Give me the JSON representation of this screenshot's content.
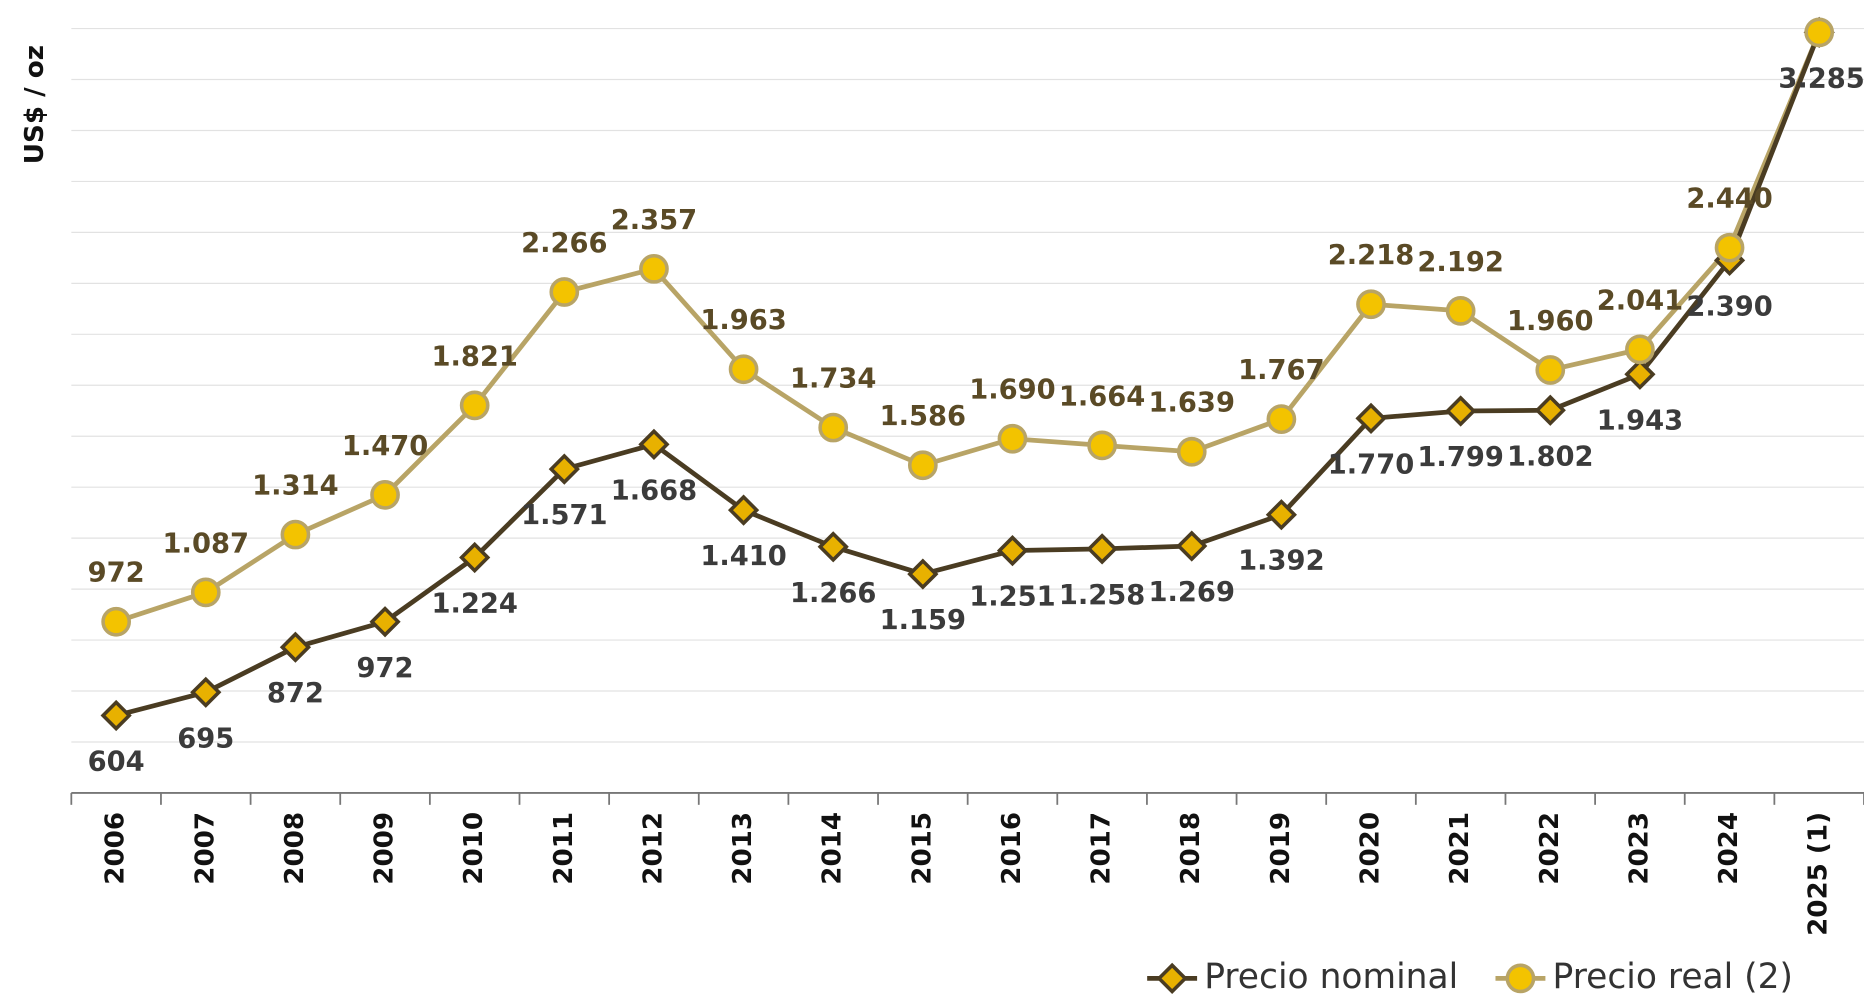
{
  "chart_data": {
    "type": "line",
    "y_label": "US$ / oz",
    "categories": [
      "2006",
      "2007",
      "2008",
      "2009",
      "2010",
      "2011",
      "2012",
      "2013",
      "2014",
      "2015",
      "2016",
      "2017",
      "2018",
      "2019",
      "2020",
      "2021",
      "2022",
      "2023",
      "2024",
      "2025 (1)"
    ],
    "series": [
      {
        "name": "Precio nominal",
        "color": "#4a3c22",
        "marker": "diamond",
        "marker_color": "#e8b100",
        "values": [
          604,
          695,
          872,
          972,
          1224,
          1571,
          1668,
          1410,
          1266,
          1159,
          1251,
          1258,
          1269,
          1392,
          1770,
          1799,
          1802,
          1943,
          2390,
          3285
        ],
        "value_labels": [
          "604",
          "695",
          "872",
          "972",
          "1.224",
          "1.571",
          "1.668",
          "1.410",
          "1.266",
          "1.159",
          "1.251",
          "1.258",
          "1.269",
          "1.392",
          "1.770",
          "1.799",
          "1.802",
          "1.943",
          "2.390",
          "3.285"
        ]
      },
      {
        "name": "Precio real (2)",
        "color": "#b8a466",
        "marker": "circle",
        "marker_color": "#f3c300",
        "values": [
          972,
          1087,
          1314,
          1470,
          1821,
          2266,
          2357,
          1963,
          1734,
          1586,
          1690,
          1664,
          1639,
          1767,
          2218,
          2192,
          1960,
          2041,
          2440,
          3285
        ],
        "value_labels": [
          "972",
          "1.087",
          "1.314",
          "1.470",
          "1.821",
          "2.266",
          "2.357",
          "1.963",
          "1.734",
          "1.586",
          "1.690",
          "1.664",
          "1.639",
          "1.767",
          "2.218",
          "2.192",
          "1.960",
          "2.041",
          "2.440",
          "3.285"
        ]
      }
    ],
    "ylim": [
      300,
      3300
    ],
    "yticks": [
      300,
      500,
      700,
      900,
      1100,
      1300,
      1500,
      1700,
      1900,
      2100,
      2300,
      2500,
      2700,
      2900,
      3100,
      3300
    ],
    "grid": true,
    "legend": "bottom-right"
  }
}
